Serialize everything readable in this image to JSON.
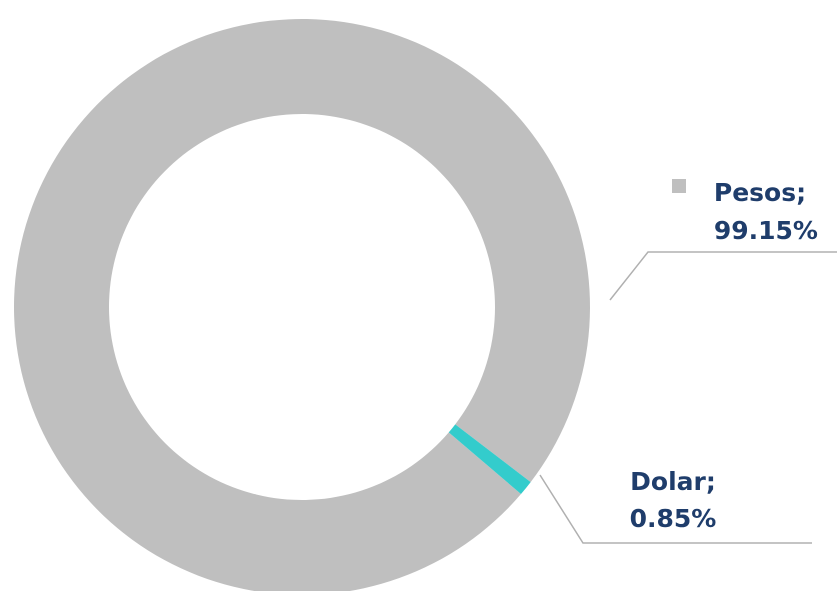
{
  "chart_data": {
    "type": "donut",
    "categories": [
      "Pesos;",
      "Dolar;"
    ],
    "values": [
      99.15,
      0.85
    ],
    "value_labels": [
      "99.15%",
      "0.85%"
    ],
    "colors": [
      "#bfbfbf",
      "#33cccc"
    ]
  }
}
